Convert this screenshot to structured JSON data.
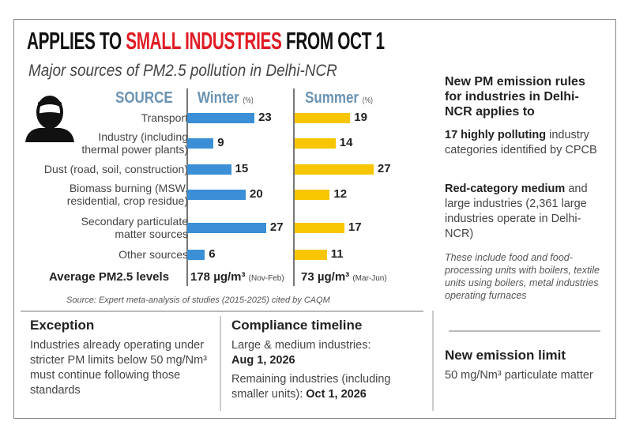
{
  "title": {
    "part1": "APPLIES TO ",
    "highlight": "SMALL INDUSTRIES",
    "part2": " FROM OCT 1"
  },
  "subtitle": "Major sources of PM2.5 pollution in Delhi-NCR",
  "colors": {
    "winter": "#3a8fd6",
    "summer": "#f7c600",
    "highlight": "#e01b24",
    "header": "#6a93b3"
  },
  "icon": "person-with-mask-icon",
  "chart_data": {
    "type": "bar",
    "orientation": "horizontal",
    "category_header": "SOURCE",
    "categories": [
      "Transport",
      "Industry (including thermal power plants)",
      "Dust (road, soil, construction)",
      "Biomass burning (MSW, residential, crop residue)",
      "Secondary particulate matter sources",
      "Other sources"
    ],
    "category_lines": [
      [
        "Transport"
      ],
      [
        "Industry (including",
        "thermal power plants)"
      ],
      [
        "Dust (road, soil, construction)"
      ],
      [
        "Biomass burning (MSW,",
        "residential, crop residue)"
      ],
      [
        "Secondary particulate",
        "matter sources"
      ],
      [
        "Other sources"
      ]
    ],
    "unit": "(%)",
    "series": [
      {
        "name": "Winter",
        "values": [
          23,
          9,
          15,
          20,
          27,
          6
        ],
        "color": "#3a8fd6"
      },
      {
        "name": "Summer",
        "values": [
          19,
          14,
          27,
          12,
          17,
          11
        ],
        "color": "#f7c600"
      }
    ],
    "average": {
      "label": "Average  PM2.5 levels",
      "winter": "178 µg/m³",
      "winter_period": "(Nov-Feb)",
      "summer": "73 µg/m³",
      "summer_period": "(Mar-Jun)"
    },
    "source": "Source: Expert meta-analysis of studies (2015-2025) cited by CAQM"
  },
  "rules": {
    "heading": "New PM emission rules for industries in Delhi-NCR applies to",
    "item1_bold": "17 highly polluting",
    "item1_rest": "industry categories identified by CPCB",
    "item2_bold": "Red-category medium",
    "item2_rest": "and large industries (2,361 large industries operate in Delhi-NCR)",
    "note": "These include food and food-processing units with boilers, textile units using boilers, metal industries operating furnaces"
  },
  "exception": {
    "heading": "Exception",
    "text": "Industries already operating under stricter PM limits below 50 mg/Nm³ must continue following those standards"
  },
  "compliance": {
    "heading": "Compliance timeline",
    "line1": "Large & medium industries:",
    "date1": "Aug 1, 2026",
    "line2": "Remaining industries (including smaller units):",
    "date2": "Oct 1, 2026"
  },
  "limit": {
    "heading": "New emission limit",
    "text": "50 mg/Nm³ particulate matter"
  }
}
